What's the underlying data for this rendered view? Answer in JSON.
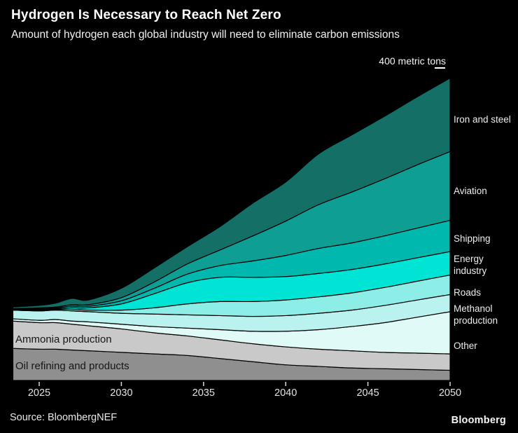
{
  "header": {
    "title": "Hydrogen Is Necessary to Reach Net Zero",
    "subtitle": "Amount of hydrogen each global industry will need to eliminate carbon emissions"
  },
  "annotation": {
    "axis_max_label": "400 metric tons"
  },
  "right_labels": {
    "iron": "Iron and steel",
    "aviation": "Aviation",
    "shipping": "Shipping",
    "energy": "Energy industry",
    "roads": "Roads",
    "methanol": "Methanol production",
    "other": "Other"
  },
  "area_labels": {
    "ammonia": "Ammonia production",
    "oil": "Oil refining and products"
  },
  "footer": {
    "source": "Source: BloombergNEF",
    "logo": "Bloomberg"
  },
  "colors": {
    "background": "#000000",
    "outline": "#000000",
    "tick": "#d9d9d9"
  },
  "chart_data": {
    "type": "area",
    "stacked": true,
    "title": "Hydrogen Is Necessary to Reach Net Zero",
    "ylabel": "metric tons",
    "ylim": [
      0,
      400
    ],
    "axis_annotation": "400 metric tons",
    "grid": false,
    "legend_position": "right-of-plot",
    "x": [
      2023.4,
      2025,
      2026,
      2027,
      2028,
      2030,
      2032,
      2034,
      2036,
      2038,
      2040,
      2042,
      2044,
      2046,
      2048,
      2050
    ],
    "x_ticks": [
      2025,
      2030,
      2035,
      2040,
      2045,
      2050
    ],
    "series": [
      {
        "name": "Oil refining and products",
        "color": "#8f8f8f",
        "values": [
          41,
          40,
          40,
          39,
          38,
          36,
          34,
          32,
          28,
          24,
          20,
          18,
          16,
          15,
          14,
          13
        ]
      },
      {
        "name": "Ammonia production",
        "color": "#c9c9c9",
        "values": [
          35,
          34,
          34,
          33,
          32,
          30,
          27,
          25,
          24,
          23,
          23,
          22,
          22,
          21,
          21,
          21
        ]
      },
      {
        "name": "Other",
        "color": "#dffaf7",
        "values": [
          3,
          3,
          4,
          4,
          5,
          6,
          8,
          10,
          13,
          16,
          20,
          25,
          31,
          38,
          46,
          54
        ]
      },
      {
        "name": "Methanol production",
        "color": "#b9f2ee",
        "values": [
          11,
          12,
          12,
          13,
          13,
          14,
          16,
          17,
          18,
          19,
          20,
          21,
          21,
          22,
          22,
          22
        ]
      },
      {
        "name": "Roads",
        "color": "#8ceee7",
        "values": [
          0.5,
          1,
          1,
          2,
          2,
          4,
          8,
          14,
          18,
          19,
          20,
          21,
          22,
          23,
          24,
          25
        ]
      },
      {
        "name": "Energy industry",
        "color": "#00e4d5",
        "values": [
          0.5,
          1,
          1,
          2,
          3,
          8,
          18,
          27,
          31,
          31,
          30,
          30,
          30,
          30,
          30,
          30
        ]
      },
      {
        "name": "Shipping",
        "color": "#00b8ae",
        "values": [
          0.5,
          1,
          1,
          2,
          2,
          4,
          7,
          11,
          15,
          21,
          27,
          32,
          34,
          36,
          38,
          40
        ]
      },
      {
        "name": "Aviation",
        "color": "#0f9e93",
        "values": [
          0.5,
          1,
          1,
          2,
          2,
          4,
          8,
          13,
          20,
          32,
          44,
          56,
          65,
          73,
          81,
          88
        ]
      },
      {
        "name": "Iron and steel",
        "color": "#146f66",
        "values": [
          2,
          3,
          5,
          8,
          6,
          12,
          18,
          22,
          30,
          42,
          50,
          65,
          73,
          80,
          87,
          94
        ]
      }
    ]
  }
}
